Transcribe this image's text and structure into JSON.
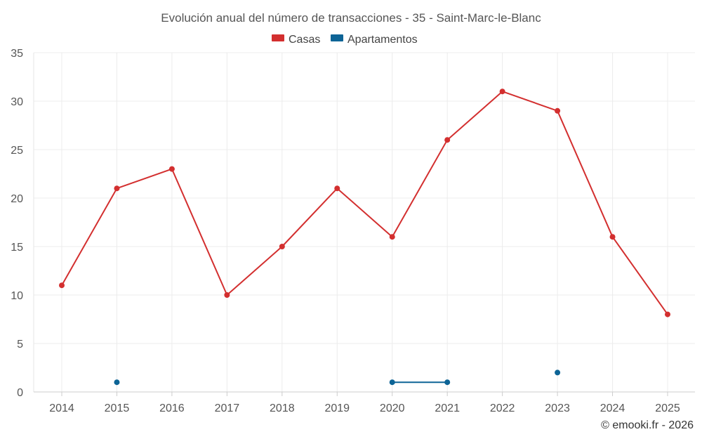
{
  "chart_data": {
    "type": "line",
    "title": "Evolución anual del número de transacciones - 35 - Saint-Marc-le-Blanc",
    "categories": [
      "2014",
      "2015",
      "2016",
      "2017",
      "2018",
      "2019",
      "2020",
      "2021",
      "2022",
      "2023",
      "2024",
      "2025"
    ],
    "ylim": [
      0,
      35
    ],
    "yticks": [
      0,
      5,
      10,
      15,
      20,
      25,
      30,
      35
    ],
    "grid": true,
    "legend_position": "top-center",
    "series": [
      {
        "name": "Casas",
        "color": "#d32f2f",
        "values": [
          11,
          21,
          23,
          10,
          15,
          21,
          16,
          26,
          31,
          29,
          16,
          8
        ]
      },
      {
        "name": "Apartamentos",
        "color": "#0d6496",
        "values": [
          null,
          1,
          null,
          null,
          null,
          null,
          1,
          1,
          null,
          2,
          null,
          null
        ]
      }
    ]
  },
  "credit": "© emooki.fr - 2026"
}
